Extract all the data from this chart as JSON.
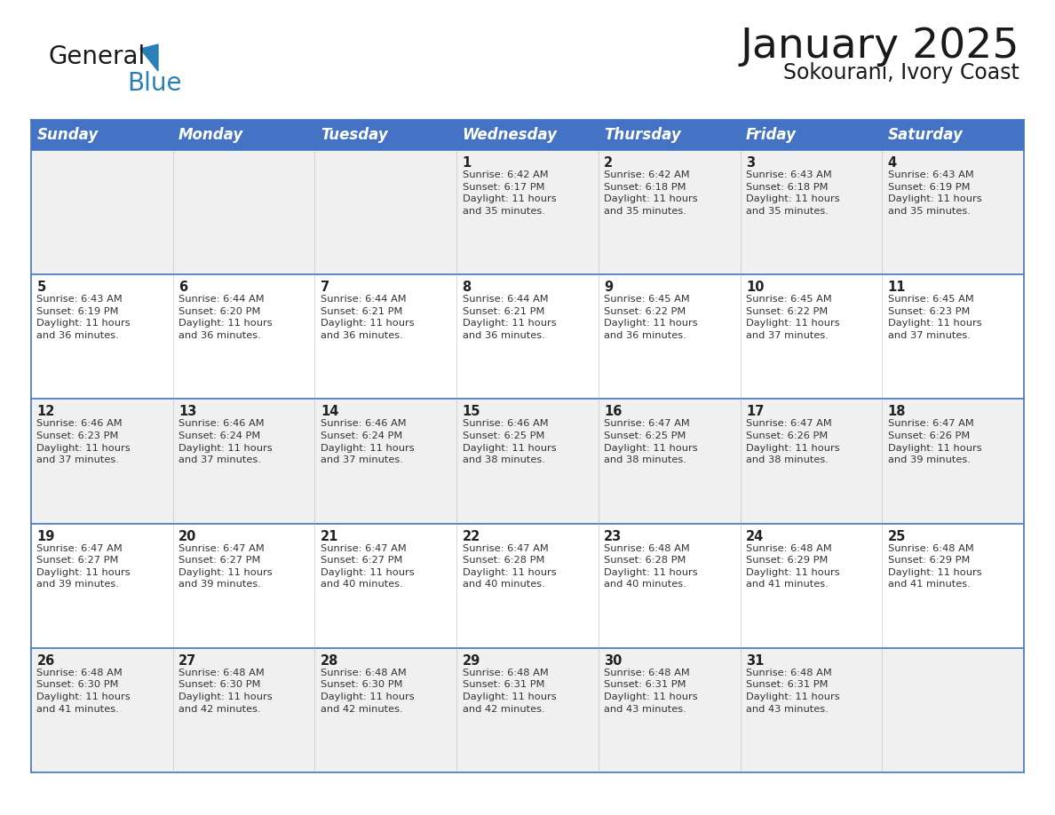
{
  "title": "January 2025",
  "subtitle": "Sokourani, Ivory Coast",
  "header_bg_color": "#4472C4",
  "header_text_color": "#FFFFFF",
  "header_days": [
    "Sunday",
    "Monday",
    "Tuesday",
    "Wednesday",
    "Thursday",
    "Friday",
    "Saturday"
  ],
  "row_bg_even": "#F0F0F0",
  "row_bg_odd": "#FFFFFF",
  "cell_border_color": "#4472C4",
  "day_number_color": "#222222",
  "day_info_color": "#333333",
  "background_color": "#FFFFFF",
  "calendar_data": [
    [
      {
        "day": "",
        "info": ""
      },
      {
        "day": "",
        "info": ""
      },
      {
        "day": "",
        "info": ""
      },
      {
        "day": "1",
        "info": "Sunrise: 6:42 AM\nSunset: 6:17 PM\nDaylight: 11 hours\nand 35 minutes."
      },
      {
        "day": "2",
        "info": "Sunrise: 6:42 AM\nSunset: 6:18 PM\nDaylight: 11 hours\nand 35 minutes."
      },
      {
        "day": "3",
        "info": "Sunrise: 6:43 AM\nSunset: 6:18 PM\nDaylight: 11 hours\nand 35 minutes."
      },
      {
        "day": "4",
        "info": "Sunrise: 6:43 AM\nSunset: 6:19 PM\nDaylight: 11 hours\nand 35 minutes."
      }
    ],
    [
      {
        "day": "5",
        "info": "Sunrise: 6:43 AM\nSunset: 6:19 PM\nDaylight: 11 hours\nand 36 minutes."
      },
      {
        "day": "6",
        "info": "Sunrise: 6:44 AM\nSunset: 6:20 PM\nDaylight: 11 hours\nand 36 minutes."
      },
      {
        "day": "7",
        "info": "Sunrise: 6:44 AM\nSunset: 6:21 PM\nDaylight: 11 hours\nand 36 minutes."
      },
      {
        "day": "8",
        "info": "Sunrise: 6:44 AM\nSunset: 6:21 PM\nDaylight: 11 hours\nand 36 minutes."
      },
      {
        "day": "9",
        "info": "Sunrise: 6:45 AM\nSunset: 6:22 PM\nDaylight: 11 hours\nand 36 minutes."
      },
      {
        "day": "10",
        "info": "Sunrise: 6:45 AM\nSunset: 6:22 PM\nDaylight: 11 hours\nand 37 minutes."
      },
      {
        "day": "11",
        "info": "Sunrise: 6:45 AM\nSunset: 6:23 PM\nDaylight: 11 hours\nand 37 minutes."
      }
    ],
    [
      {
        "day": "12",
        "info": "Sunrise: 6:46 AM\nSunset: 6:23 PM\nDaylight: 11 hours\nand 37 minutes."
      },
      {
        "day": "13",
        "info": "Sunrise: 6:46 AM\nSunset: 6:24 PM\nDaylight: 11 hours\nand 37 minutes."
      },
      {
        "day": "14",
        "info": "Sunrise: 6:46 AM\nSunset: 6:24 PM\nDaylight: 11 hours\nand 37 minutes."
      },
      {
        "day": "15",
        "info": "Sunrise: 6:46 AM\nSunset: 6:25 PM\nDaylight: 11 hours\nand 38 minutes."
      },
      {
        "day": "16",
        "info": "Sunrise: 6:47 AM\nSunset: 6:25 PM\nDaylight: 11 hours\nand 38 minutes."
      },
      {
        "day": "17",
        "info": "Sunrise: 6:47 AM\nSunset: 6:26 PM\nDaylight: 11 hours\nand 38 minutes."
      },
      {
        "day": "18",
        "info": "Sunrise: 6:47 AM\nSunset: 6:26 PM\nDaylight: 11 hours\nand 39 minutes."
      }
    ],
    [
      {
        "day": "19",
        "info": "Sunrise: 6:47 AM\nSunset: 6:27 PM\nDaylight: 11 hours\nand 39 minutes."
      },
      {
        "day": "20",
        "info": "Sunrise: 6:47 AM\nSunset: 6:27 PM\nDaylight: 11 hours\nand 39 minutes."
      },
      {
        "day": "21",
        "info": "Sunrise: 6:47 AM\nSunset: 6:27 PM\nDaylight: 11 hours\nand 40 minutes."
      },
      {
        "day": "22",
        "info": "Sunrise: 6:47 AM\nSunset: 6:28 PM\nDaylight: 11 hours\nand 40 minutes."
      },
      {
        "day": "23",
        "info": "Sunrise: 6:48 AM\nSunset: 6:28 PM\nDaylight: 11 hours\nand 40 minutes."
      },
      {
        "day": "24",
        "info": "Sunrise: 6:48 AM\nSunset: 6:29 PM\nDaylight: 11 hours\nand 41 minutes."
      },
      {
        "day": "25",
        "info": "Sunrise: 6:48 AM\nSunset: 6:29 PM\nDaylight: 11 hours\nand 41 minutes."
      }
    ],
    [
      {
        "day": "26",
        "info": "Sunrise: 6:48 AM\nSunset: 6:30 PM\nDaylight: 11 hours\nand 41 minutes."
      },
      {
        "day": "27",
        "info": "Sunrise: 6:48 AM\nSunset: 6:30 PM\nDaylight: 11 hours\nand 42 minutes."
      },
      {
        "day": "28",
        "info": "Sunrise: 6:48 AM\nSunset: 6:30 PM\nDaylight: 11 hours\nand 42 minutes."
      },
      {
        "day": "29",
        "info": "Sunrise: 6:48 AM\nSunset: 6:31 PM\nDaylight: 11 hours\nand 42 minutes."
      },
      {
        "day": "30",
        "info": "Sunrise: 6:48 AM\nSunset: 6:31 PM\nDaylight: 11 hours\nand 43 minutes."
      },
      {
        "day": "31",
        "info": "Sunrise: 6:48 AM\nSunset: 6:31 PM\nDaylight: 11 hours\nand 43 minutes."
      },
      {
        "day": "",
        "info": ""
      }
    ]
  ],
  "logo_general_color": "#1a1a1a",
  "logo_blue_color": "#2980B9",
  "logo_triangle_color": "#2980B9",
  "title_fontsize": 34,
  "subtitle_fontsize": 17,
  "header_fontsize": 12,
  "day_number_fontsize": 10.5,
  "info_fontsize": 8.2
}
